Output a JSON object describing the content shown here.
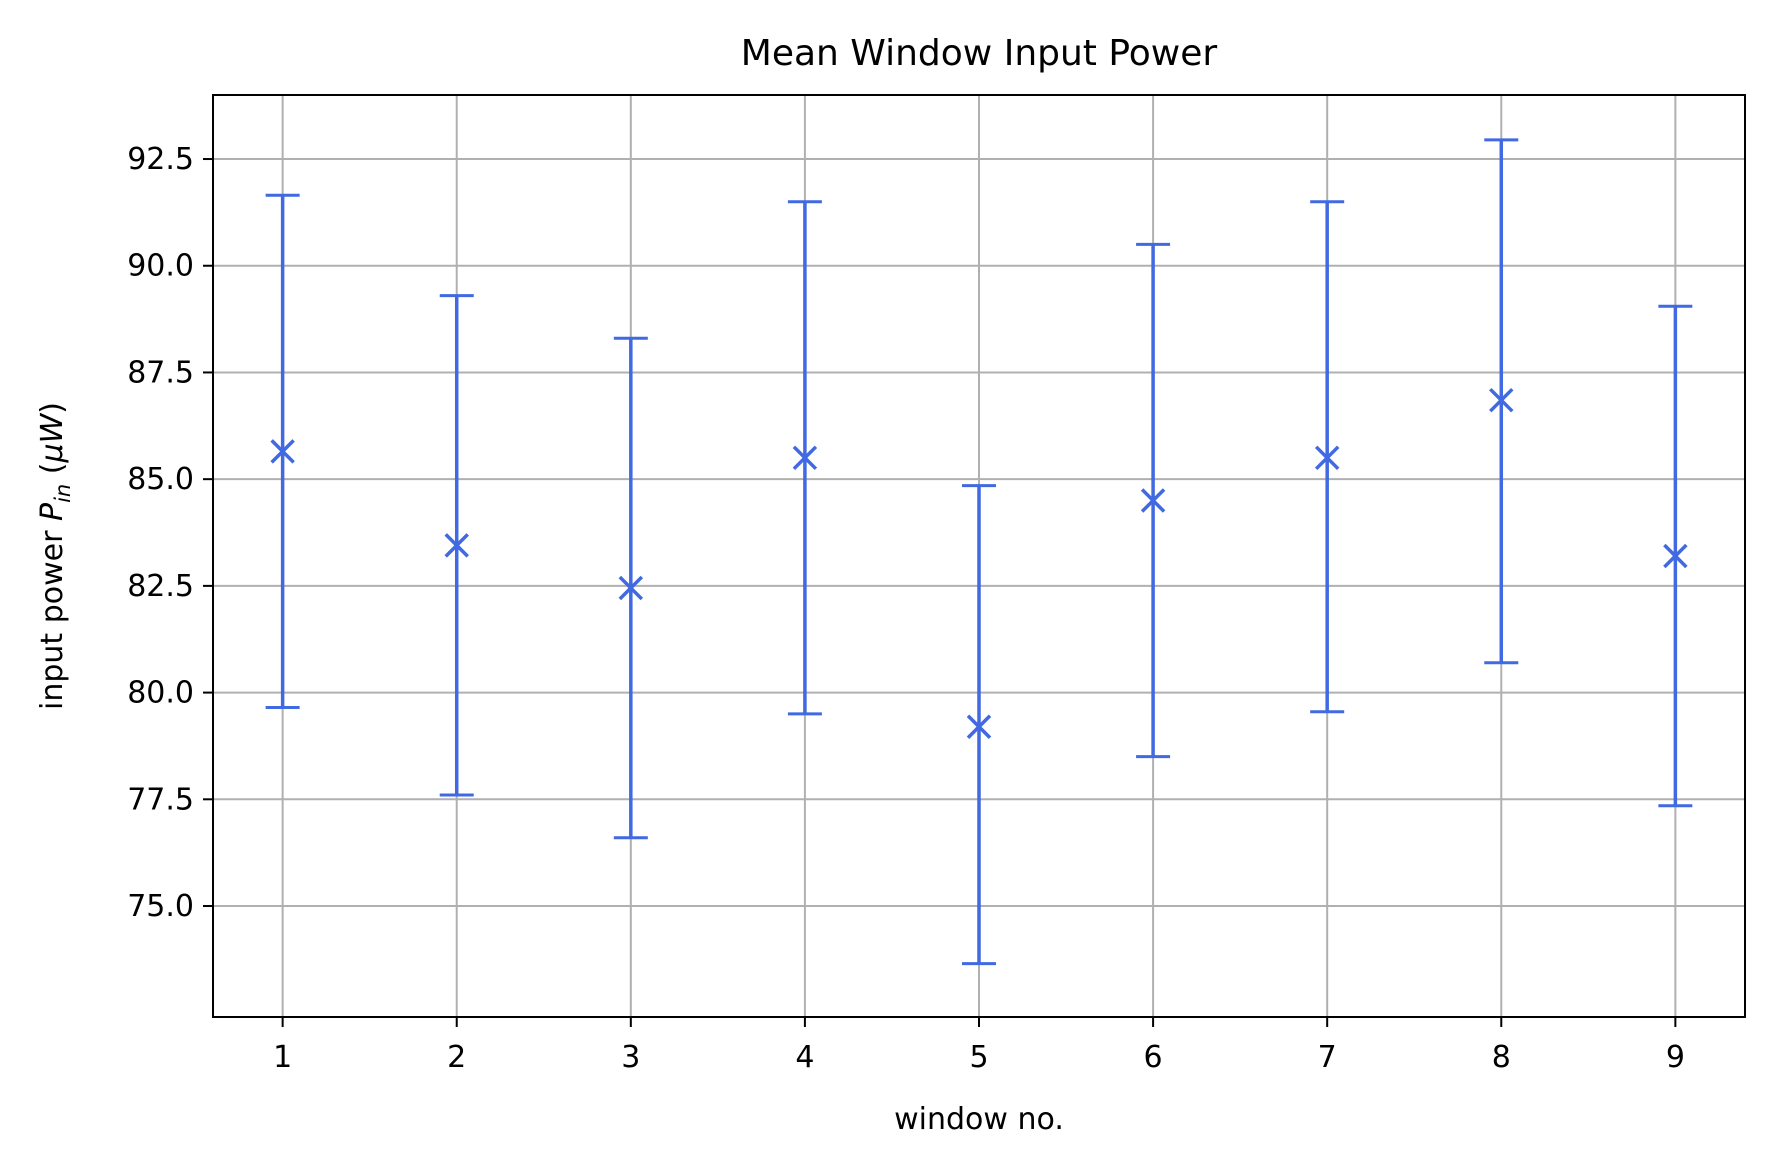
{
  "chart_data": {
    "type": "scatter",
    "title": "Mean Window Input Power",
    "xlabel": "window no.",
    "ylabel_main": "input power ",
    "ylabel_symbol": "P",
    "ylabel_subscript": "in",
    "ylabel_unit_open": " (",
    "ylabel_unit_mu": "μW",
    "ylabel_unit_close": ")",
    "xlim": [
      0.6,
      9.4
    ],
    "ylim": [
      72.4,
      94.0
    ],
    "xticks": [
      1,
      2,
      3,
      4,
      5,
      6,
      7,
      8,
      9
    ],
    "xtick_labels": [
      "1",
      "2",
      "3",
      "4",
      "5",
      "6",
      "7",
      "8",
      "9"
    ],
    "yticks": [
      75.0,
      77.5,
      80.0,
      82.5,
      85.0,
      87.5,
      90.0,
      92.5
    ],
    "ytick_labels": [
      "75.0",
      "77.5",
      "80.0",
      "82.5",
      "85.0",
      "87.5",
      "90.0",
      "92.5"
    ],
    "grid": true,
    "marker": "x",
    "series": [
      {
        "x": [
          1,
          2,
          3,
          4,
          5,
          6,
          7,
          8,
          9
        ],
        "y": [
          85.65,
          83.45,
          82.45,
          85.5,
          79.2,
          84.5,
          85.5,
          86.85,
          83.2
        ],
        "yerr_low": [
          79.65,
          77.6,
          76.6,
          79.5,
          73.65,
          78.5,
          79.55,
          80.7,
          77.35
        ],
        "yerr_high": [
          91.65,
          89.3,
          88.3,
          91.5,
          84.85,
          90.5,
          91.5,
          92.95,
          89.05
        ],
        "color": "#4169E1"
      }
    ]
  }
}
